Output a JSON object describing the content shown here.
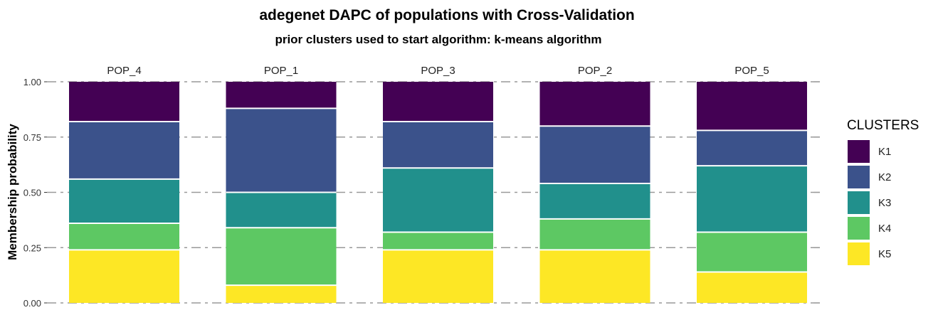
{
  "chart_data": {
    "type": "bar",
    "stacked": true,
    "title": "adegenet DAPC of populations with Cross-Validation",
    "subtitle": "prior clusters used to start algorithm: k-means algorithm",
    "ylabel": "Membership probability",
    "ylim": [
      0,
      1
    ],
    "yticks": [
      "0.00",
      "0.25",
      "0.50",
      "0.75",
      "1.00"
    ],
    "grid": "horizontal dashed",
    "legend_title": "CLUSTERS",
    "legend_position": "right",
    "categories": [
      "POP_4",
      "POP_1",
      "POP_3",
      "POP_2",
      "POP_5"
    ],
    "series": [
      {
        "name": "K1",
        "color": "#440154",
        "values": [
          0.18,
          0.12,
          0.18,
          0.2,
          0.22
        ]
      },
      {
        "name": "K2",
        "color": "#3B528B",
        "values": [
          0.26,
          0.38,
          0.21,
          0.26,
          0.16
        ]
      },
      {
        "name": "K3",
        "color": "#21908C",
        "values": [
          0.2,
          0.16,
          0.29,
          0.16,
          0.3
        ]
      },
      {
        "name": "K4",
        "color": "#5DC863",
        "values": [
          0.12,
          0.26,
          0.08,
          0.14,
          0.18
        ]
      },
      {
        "name": "K5",
        "color": "#FDE725",
        "values": [
          0.24,
          0.08,
          0.24,
          0.24,
          0.14
        ]
      }
    ]
  }
}
